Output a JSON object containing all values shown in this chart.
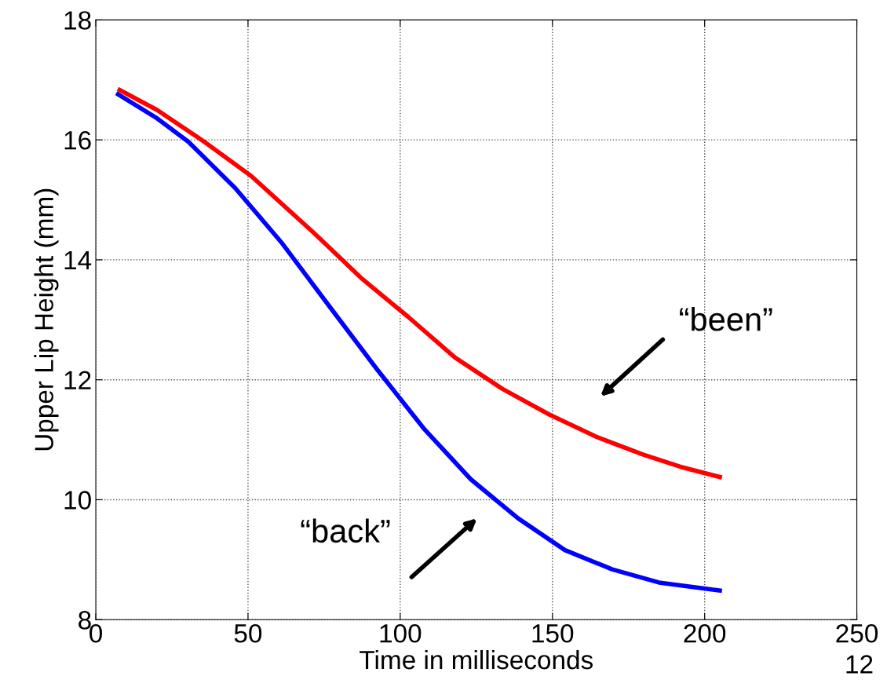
{
  "chart_data": {
    "type": "line",
    "xlabel": "Time in milliseconds",
    "ylabel": "Upper Lip Height (mm)",
    "xlim": [
      0,
      250
    ],
    "xticks": [
      0,
      50,
      100,
      150,
      200,
      250
    ],
    "ylim": [
      8,
      18
    ],
    "yticks": [
      8,
      10,
      12,
      14,
      16,
      18
    ],
    "grid": true,
    "line_style": "solid",
    "series": [
      {
        "color": "#ff0000",
        "x": [
          7.2,
          20.1,
          35.6,
          51,
          71.6,
          87.1,
          102.6,
          118,
          133.5,
          149,
          164.4,
          179.9,
          192,
          205.7
        ],
        "values": [
          16.85,
          16.5,
          15.97,
          15.4,
          14.45,
          13.7,
          13.05,
          12.37,
          11.85,
          11.42,
          11.05,
          10.75,
          10.55,
          10.37
        ]
      },
      {
        "color": "#0000ff",
        "x": [
          6.7,
          20.1,
          30.4,
          45.9,
          61.3,
          76.8,
          92.3,
          107.7,
          123.2,
          138.7,
          154.1,
          169.6,
          185,
          205.7
        ],
        "values": [
          16.78,
          16.36,
          15.97,
          15.19,
          14.27,
          13.22,
          12.18,
          11.19,
          10.34,
          9.69,
          9.16,
          8.84,
          8.62,
          8.48
        ]
      }
    ],
    "annotations": [
      "“been”",
      "“back”",
      "12"
    ]
  }
}
